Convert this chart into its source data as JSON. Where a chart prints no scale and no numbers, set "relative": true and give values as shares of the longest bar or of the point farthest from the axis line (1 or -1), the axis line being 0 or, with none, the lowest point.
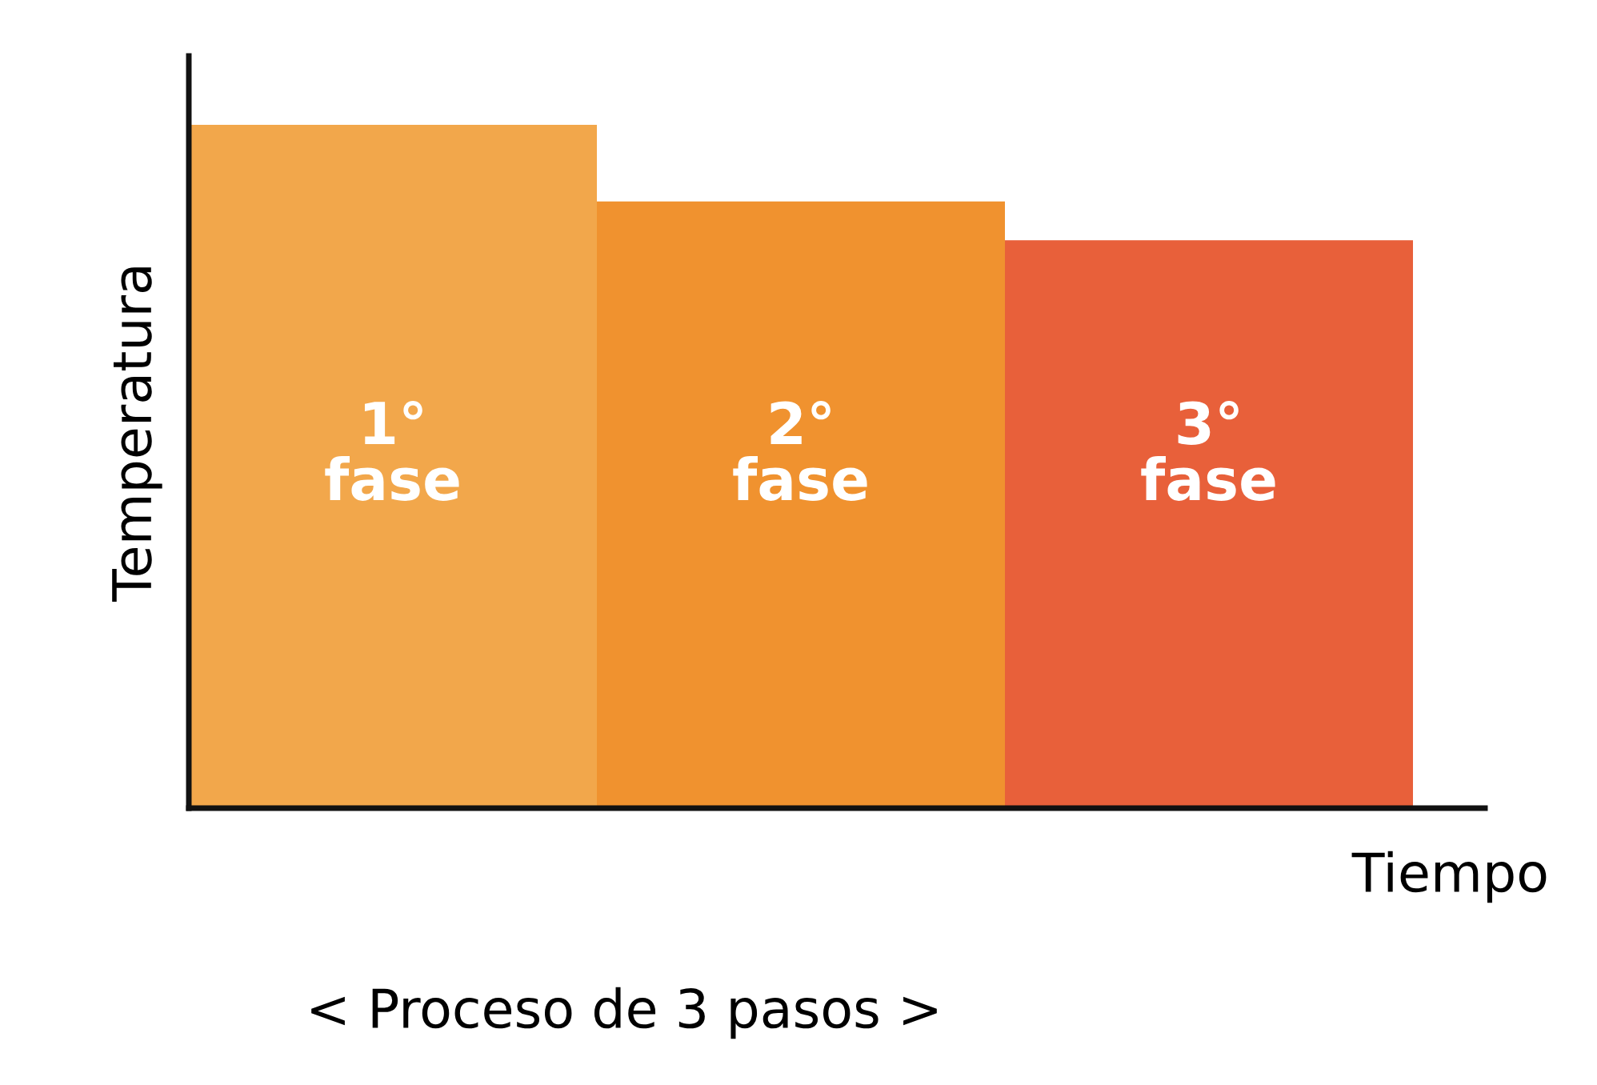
{
  "chart_data": {
    "type": "bar",
    "relative": true,
    "xlabel": "Tiempo",
    "ylabel": "Temperatura",
    "categories": [
      "1°\nfase",
      "2°\nfase",
      "3°\nfase"
    ],
    "values": [
      1,
      0.888,
      0.831
    ],
    "colors": [
      "#f2a74b",
      "#f0922f",
      "#e8603a"
    ],
    "annotations": [
      "< Proceso de 3 pasos >"
    ]
  }
}
